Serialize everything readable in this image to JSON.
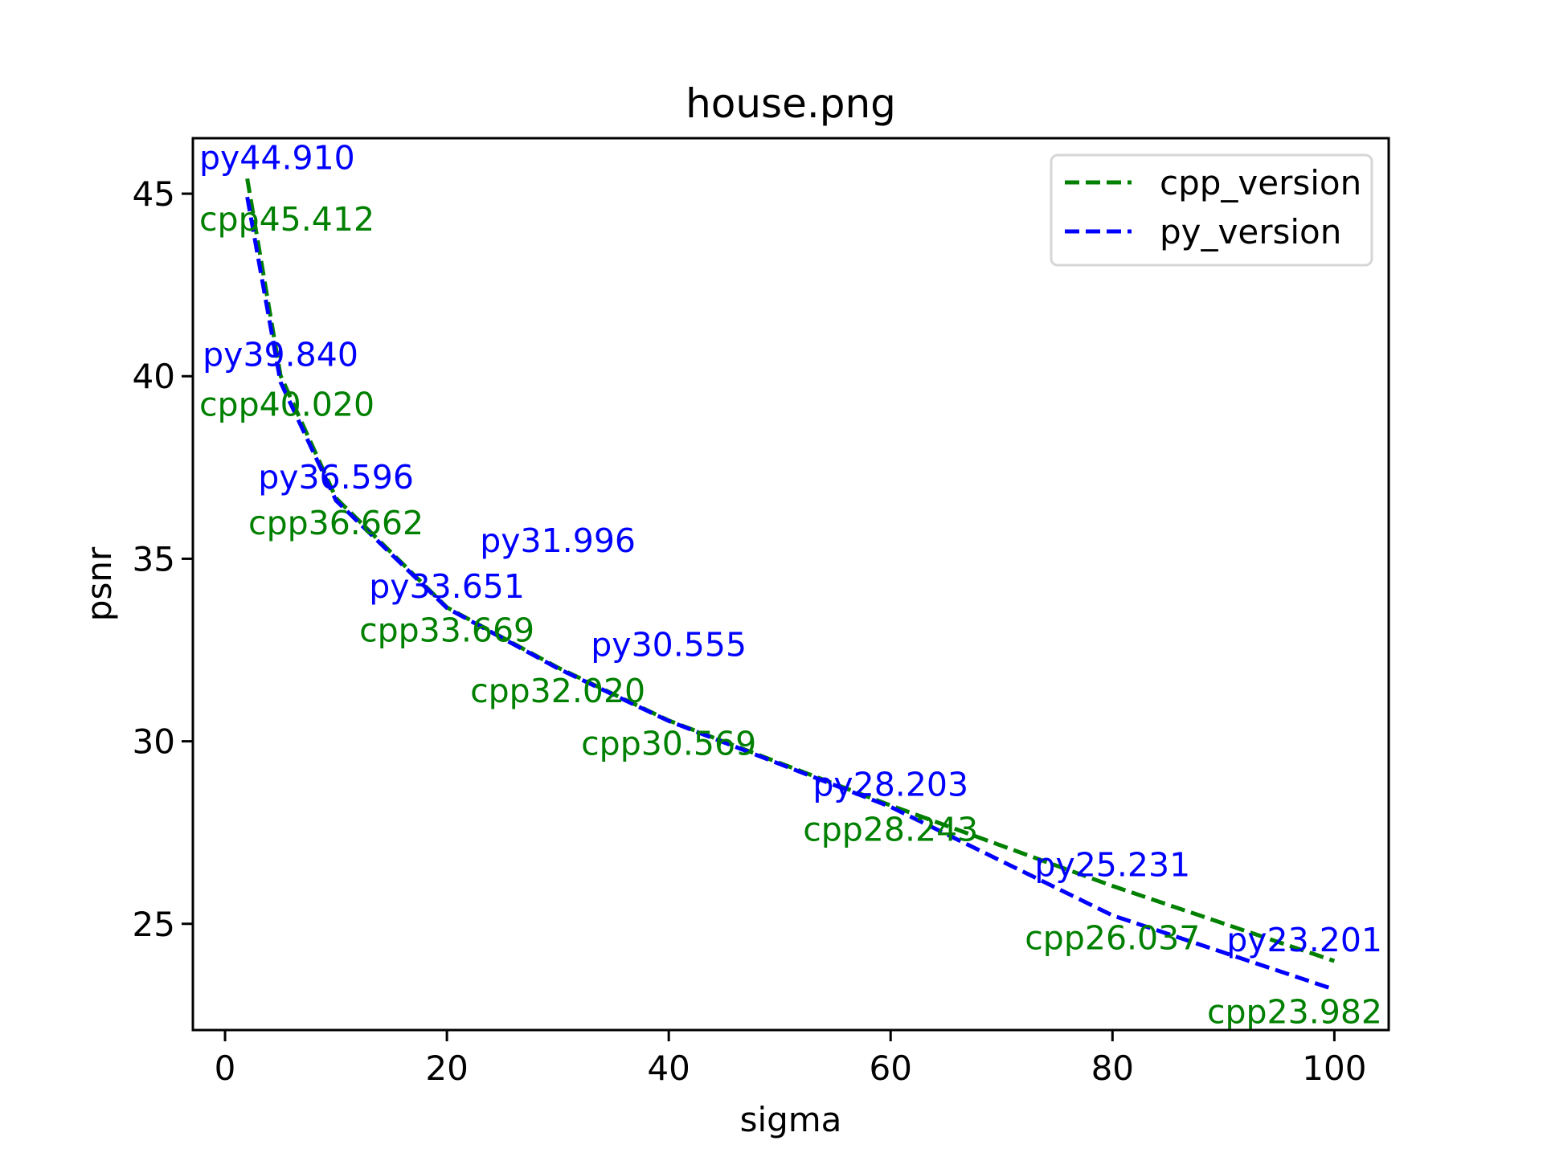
{
  "chart_data": {
    "type": "line",
    "title": "house.png",
    "xlabel": "sigma",
    "ylabel": "psnr",
    "xlim": [
      -2.9,
      104.9
    ],
    "ylim": [
      22.09,
      46.52
    ],
    "xticks": [
      0,
      20,
      40,
      60,
      80,
      100
    ],
    "yticks": [
      25,
      30,
      35,
      40,
      45
    ],
    "grid": false,
    "legend_position": "top-right",
    "x": [
      2,
      5,
      10,
      20,
      30,
      40,
      60,
      80,
      100
    ],
    "series": [
      {
        "name": "cpp_version",
        "color": "#008000",
        "style": "dashed",
        "label_prefix": "cpp",
        "values": [
          45.412,
          40.02,
          36.662,
          33.669,
          32.02,
          30.569,
          28.243,
          26.037,
          23.982
        ],
        "labels": [
          "cpp45.412",
          "cpp40.020",
          "cpp36.662",
          "cpp33.669",
          "cpp32.020",
          "cpp30.569",
          "cpp28.243",
          "cpp26.037",
          "cpp23.982"
        ]
      },
      {
        "name": "py_version",
        "color": "#0000ff",
        "style": "dashed",
        "label_prefix": "py",
        "values": [
          44.91,
          39.84,
          36.596,
          33.651,
          31.996,
          30.555,
          28.203,
          25.231,
          23.201
        ],
        "labels": [
          "py44.910",
          "py39.840",
          "py36.596",
          "py33.651",
          "py31.996",
          "py30.555",
          "py28.203",
          "py25.231",
          "py23.201"
        ]
      }
    ]
  }
}
